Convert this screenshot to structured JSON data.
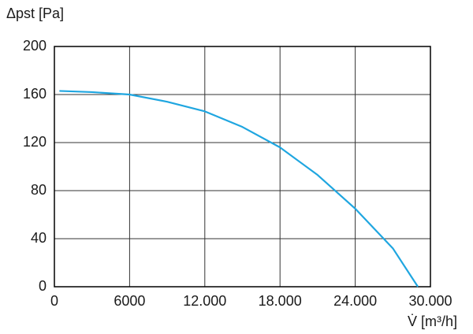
{
  "chart_data": {
    "type": "line",
    "y_label": "Δpst [Pa]",
    "x_label": "V̇ [m³/h]",
    "x": [
      400,
      3000,
      6000,
      9000,
      12000,
      15000,
      18000,
      21000,
      24000,
      27000,
      29000
    ],
    "values": [
      163,
      162,
      160,
      154,
      146,
      133,
      116,
      93,
      65,
      32,
      0
    ],
    "color": "#1fa6e0",
    "xlim": [
      0,
      30000
    ],
    "ylim": [
      0,
      200
    ],
    "xticks": [
      0,
      6000,
      {
        "value": 12000,
        "label": "12.000"
      },
      {
        "value": 18000,
        "label": "18.000"
      },
      {
        "value": 24000,
        "label": "24.000"
      },
      {
        "value": 30000,
        "label": "30.000"
      }
    ],
    "yticks": [
      0,
      40,
      80,
      120,
      160,
      200
    ],
    "grid": true
  }
}
